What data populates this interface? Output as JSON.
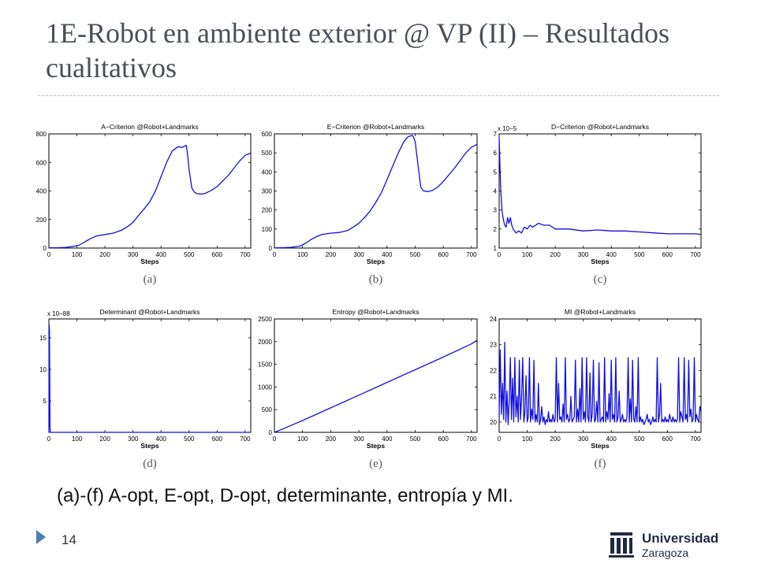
{
  "slide": {
    "title": "1E-Robot en ambiente exterior @ VP (II) – Resultados cualitativos",
    "caption": "(a)-(f) A-opt, E-opt, D-opt, determinante, entropía y MI.",
    "page_number": "14",
    "logo": {
      "name": "Universidad",
      "city": "Zaragoza"
    }
  },
  "colors": {
    "line": "#1010dd",
    "accent": "#4a7fb5"
  },
  "chart_data": [
    {
      "type": "line",
      "panel": "(a)",
      "title": "A−Criterion @Robot+Landmarks",
      "xlabel": "Steps",
      "ylabel": "",
      "xlim": [
        0,
        720
      ],
      "ylim": [
        0,
        800
      ],
      "xticks": [
        0,
        100,
        200,
        300,
        400,
        500,
        600,
        700
      ],
      "yticks": [
        0,
        200,
        400,
        600,
        800
      ],
      "exponent": "",
      "series": [
        {
          "x": [
            0,
            30,
            60,
            90,
            110,
            130,
            150,
            170,
            200,
            230,
            260,
            280,
            300,
            320,
            340,
            360,
            380,
            400,
            420,
            440,
            460,
            475,
            490,
            495,
            500,
            510,
            520,
            530,
            545,
            560,
            580,
            600,
            620,
            640,
            660,
            680,
            700,
            720
          ],
          "y": [
            2,
            3,
            5,
            12,
            22,
            45,
            68,
            85,
            95,
            105,
            125,
            150,
            180,
            230,
            275,
            325,
            400,
            500,
            600,
            680,
            710,
            705,
            720,
            650,
            550,
            420,
            390,
            380,
            378,
            385,
            405,
            430,
            470,
            510,
            560,
            610,
            650,
            665
          ]
        }
      ]
    },
    {
      "type": "line",
      "panel": "(b)",
      "title": "E−Criterion @Robot+Landmarks",
      "xlabel": "Steps",
      "ylabel": "",
      "xlim": [
        0,
        720
      ],
      "ylim": [
        0,
        600
      ],
      "xticks": [
        0,
        100,
        200,
        300,
        400,
        500,
        600,
        700
      ],
      "yticks": [
        0,
        100,
        200,
        300,
        400,
        500,
        600
      ],
      "exponent": "",
      "series": [
        {
          "x": [
            0,
            30,
            60,
            90,
            110,
            130,
            150,
            170,
            200,
            230,
            260,
            280,
            300,
            320,
            340,
            360,
            380,
            400,
            420,
            440,
            460,
            475,
            490,
            495,
            500,
            510,
            520,
            530,
            545,
            560,
            580,
            600,
            620,
            640,
            660,
            680,
            700,
            720
          ],
          "y": [
            1,
            2,
            4,
            10,
            25,
            45,
            60,
            72,
            78,
            82,
            92,
            110,
            130,
            160,
            195,
            240,
            290,
            360,
            430,
            500,
            560,
            585,
            592,
            580,
            560,
            440,
            320,
            300,
            297,
            302,
            320,
            350,
            385,
            420,
            460,
            500,
            530,
            545
          ]
        }
      ]
    },
    {
      "type": "line",
      "panel": "(c)",
      "title": "D−Criterion @Robot+Landmarks",
      "xlabel": "Steps",
      "ylabel": "",
      "xlim": [
        0,
        720
      ],
      "ylim": [
        1,
        7
      ],
      "xticks": [
        0,
        100,
        200,
        300,
        400,
        500,
        600,
        700
      ],
      "yticks": [
        1,
        2,
        3,
        4,
        5,
        6,
        7
      ],
      "exponent": "x 10−5",
      "series": [
        {
          "x": [
            0,
            3,
            6,
            10,
            15,
            20,
            25,
            30,
            35,
            40,
            45,
            50,
            55,
            60,
            70,
            80,
            90,
            100,
            110,
            120,
            140,
            160,
            180,
            200,
            250,
            300,
            350,
            400,
            450,
            500,
            550,
            600,
            650,
            700,
            720
          ],
          "y": [
            6.8,
            5.2,
            4.0,
            3.0,
            2.5,
            2.2,
            2.1,
            2.6,
            2.3,
            2.6,
            2.2,
            2.0,
            1.9,
            1.8,
            1.9,
            1.8,
            2.1,
            2.0,
            2.2,
            2.1,
            2.3,
            2.2,
            2.2,
            2.0,
            2.0,
            1.9,
            1.95,
            1.9,
            1.9,
            1.85,
            1.8,
            1.75,
            1.75,
            1.75,
            1.72
          ]
        }
      ]
    },
    {
      "type": "line",
      "panel": "(d)",
      "title": "Determinant @Robot+Landmarks",
      "xlabel": "Steps",
      "ylabel": "",
      "xlim": [
        0,
        720
      ],
      "ylim": [
        0,
        18
      ],
      "xticks": [
        0,
        100,
        200,
        300,
        400,
        500,
        600,
        700
      ],
      "yticks": [
        5,
        10,
        15
      ],
      "exponent": "x 10−88",
      "series": [
        {
          "x": [
            0,
            1,
            2,
            3,
            4,
            5,
            6,
            10,
            50,
            100,
            200,
            300,
            400,
            500,
            600,
            700,
            720
          ],
          "y": [
            0,
            17,
            16,
            8,
            1,
            0.1,
            0,
            0,
            0,
            0,
            0,
            0,
            0,
            0,
            0,
            0,
            0
          ]
        }
      ]
    },
    {
      "type": "line",
      "panel": "(e)",
      "title": "Entropy @Robot+Landmarks",
      "xlabel": "Steps",
      "ylabel": "",
      "xlim": [
        0,
        720
      ],
      "ylim": [
        0,
        2500
      ],
      "xticks": [
        0,
        100,
        200,
        300,
        400,
        500,
        600,
        700
      ],
      "yticks": [
        0,
        500,
        1000,
        1500,
        2000,
        2500
      ],
      "exponent": "",
      "series": [
        {
          "x": [
            0,
            30,
            100,
            200,
            300,
            400,
            500,
            600,
            700,
            720
          ],
          "y": [
            0,
            75,
            260,
            540,
            820,
            1100,
            1380,
            1660,
            1950,
            2030
          ]
        }
      ]
    },
    {
      "type": "line",
      "panel": "(f)",
      "title": "MI @Robot+Landmarks",
      "xlabel": "Steps",
      "ylabel": "",
      "xlim": [
        0,
        720
      ],
      "ylim": [
        19.6,
        24
      ],
      "xticks": [
        0,
        100,
        200,
        300,
        400,
        500,
        600,
        700
      ],
      "yticks": [
        20,
        21,
        22,
        23,
        24
      ],
      "exponent": "",
      "series": [
        {
          "x": [
            0,
            4,
            8,
            12,
            16,
            20,
            24,
            28,
            32,
            36,
            40,
            44,
            48,
            52,
            56,
            60,
            64,
            68,
            72,
            76,
            80,
            84,
            88,
            92,
            96,
            100,
            104,
            108,
            112,
            116,
            120,
            124,
            128,
            132,
            136,
            140,
            144,
            148,
            152,
            156,
            160,
            164,
            168,
            172,
            176,
            180,
            184,
            188,
            192,
            196,
            200,
            204,
            208,
            212,
            216,
            220,
            224,
            228,
            232,
            236,
            240,
            244,
            248,
            252,
            256,
            260,
            264,
            268,
            272,
            276,
            280,
            284,
            288,
            292,
            296,
            300,
            304,
            308,
            312,
            316,
            320,
            324,
            328,
            332,
            336,
            340,
            344,
            348,
            352,
            356,
            360,
            364,
            368,
            372,
            376,
            380,
            384,
            388,
            392,
            396,
            400,
            404,
            408,
            412,
            416,
            420,
            424,
            428,
            432,
            436,
            440,
            444,
            448,
            452,
            456,
            460,
            464,
            468,
            472,
            476,
            480,
            484,
            488,
            492,
            496,
            500,
            504,
            508,
            512,
            516,
            520,
            524,
            528,
            532,
            536,
            540,
            544,
            548,
            552,
            556,
            560,
            564,
            568,
            572,
            576,
            580,
            584,
            588,
            592,
            596,
            600,
            604,
            608,
            612,
            616,
            620,
            624,
            628,
            632,
            636,
            640,
            644,
            648,
            652,
            656,
            660,
            664,
            668,
            672,
            676,
            680,
            684,
            688,
            692,
            696,
            700,
            704,
            708,
            712,
            716,
            720
          ],
          "y": [
            20.2,
            22.8,
            20.3,
            21.5,
            20.1,
            23.1,
            20.0,
            21.2,
            19.9,
            20.8,
            22.5,
            20.1,
            21.7,
            20.0,
            22.5,
            20.2,
            21.0,
            20.0,
            22.4,
            20.1,
            20.9,
            22.5,
            20.0,
            20.4,
            21.8,
            20.0,
            20.2,
            22.5,
            20.0,
            20.5,
            20.1,
            22.4,
            20.0,
            20.3,
            20.0,
            21.5,
            19.9,
            20.1,
            20.6,
            20.0,
            20.2,
            19.9,
            20.1,
            20.0,
            20.4,
            20.0,
            20.1,
            20.0,
            20.3,
            20.0,
            20.1,
            22.5,
            20.0,
            21.5,
            20.1,
            20.2,
            20.0,
            20.7,
            20.0,
            22.5,
            20.1,
            20.3,
            20.0,
            20.1,
            21.0,
            20.0,
            20.1,
            20.2,
            22.4,
            20.0,
            20.5,
            20.0,
            21.3,
            20.0,
            22.5,
            20.1,
            20.4,
            20.0,
            22.5,
            20.2,
            20.0,
            21.9,
            20.0,
            20.3,
            22.4,
            20.0,
            20.1,
            20.8,
            20.0,
            22.3,
            20.0,
            20.1,
            20.2,
            20.0,
            22.5,
            20.0,
            20.4,
            20.1,
            21.1,
            20.0,
            22.4,
            20.1,
            20.3,
            20.0,
            22.5,
            20.0,
            20.2,
            21.2,
            20.0,
            20.1,
            20.3,
            20.0,
            20.1,
            20.0,
            20.2,
            22.5,
            20.0,
            20.9,
            20.0,
            22.4,
            20.1,
            20.0,
            20.6,
            20.0,
            22.5,
            20.0,
            20.2,
            20.0,
            20.1,
            19.9,
            20.0,
            20.1,
            20.3,
            20.0,
            20.1,
            19.9,
            20.0,
            20.2,
            20.0,
            20.1,
            20.0,
            22.5,
            20.0,
            20.3,
            21.5,
            20.0,
            20.1,
            20.0,
            20.2,
            20.0,
            20.1,
            20.0,
            20.3,
            20.1,
            20.0,
            20.2,
            20.0,
            20.1,
            20.0,
            20.1,
            22.5,
            20.0,
            20.4,
            20.2,
            20.0,
            22.5,
            20.1,
            20.3,
            20.0,
            22.4,
            20.2,
            20.5,
            20.0,
            20.1,
            22.5,
            20.0,
            20.3,
            20.1,
            20.0,
            20.6,
            20.4
          ]
        }
      ]
    }
  ]
}
